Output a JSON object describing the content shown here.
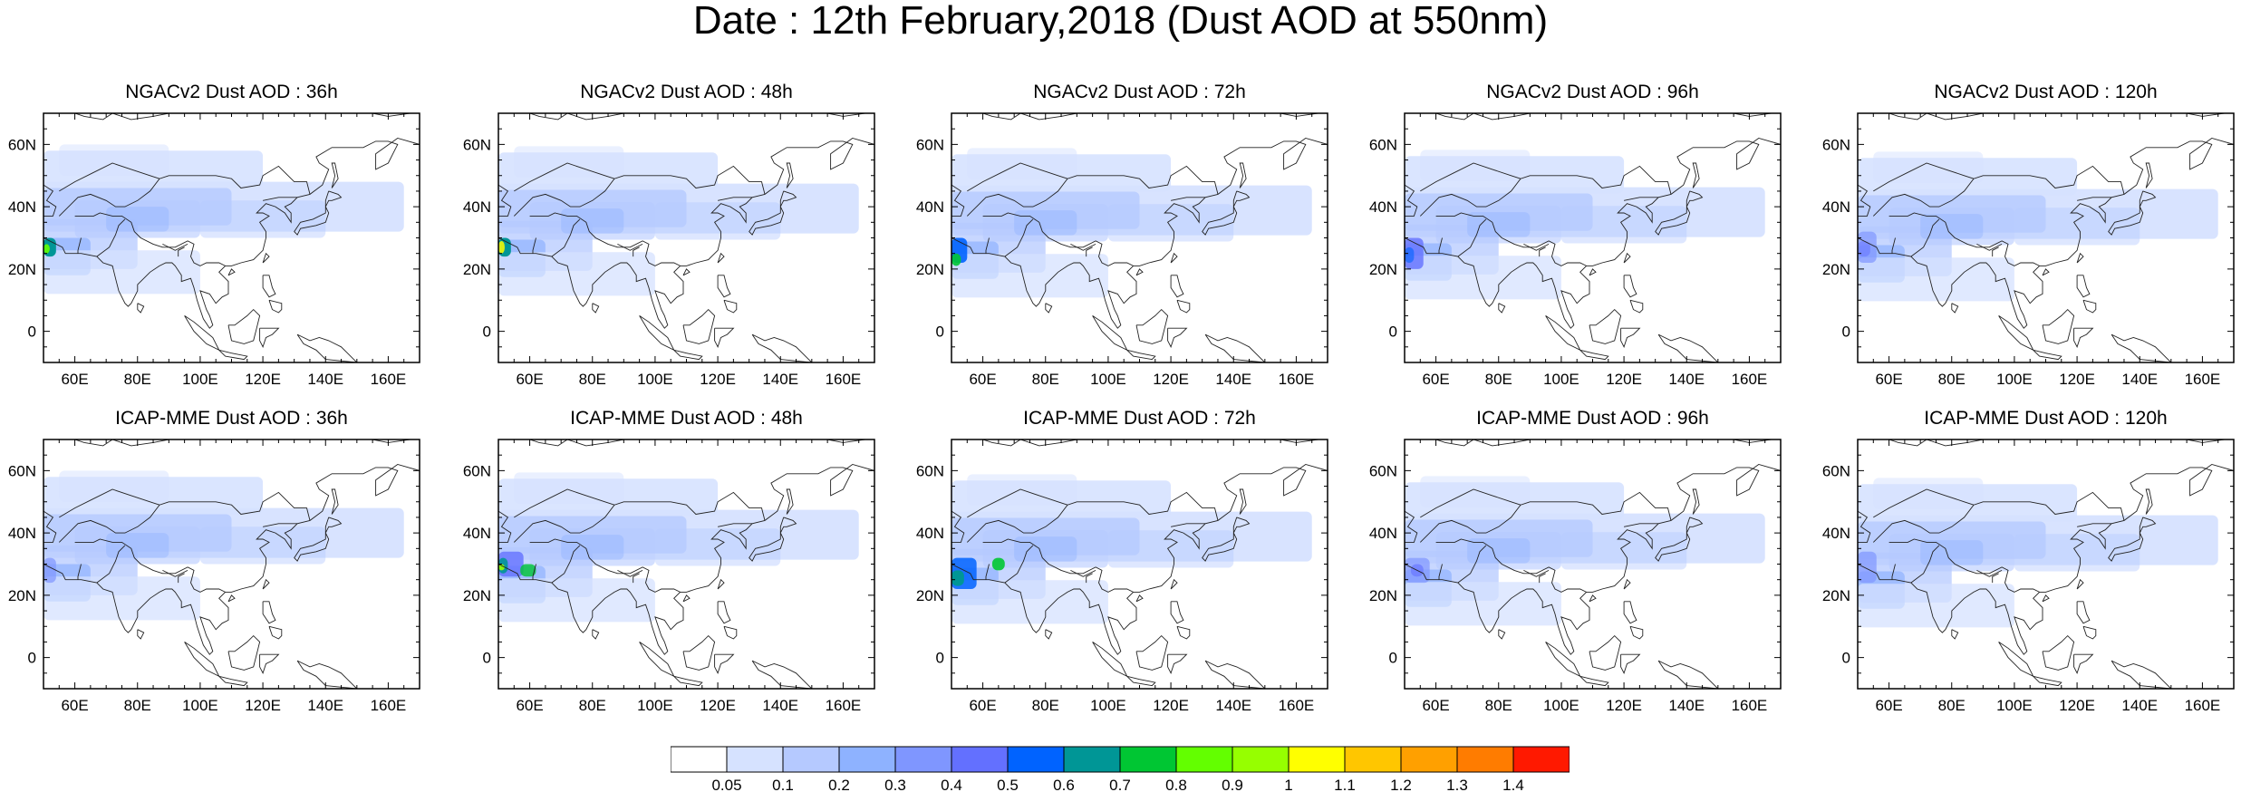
{
  "title": "Date : 12th February,2018 (Dust AOD at 550nm)",
  "map_extent": {
    "lon": [
      50,
      170
    ],
    "lat": [
      -10,
      70
    ]
  },
  "x_ticks": [
    {
      "value": 60,
      "label": "60E"
    },
    {
      "value": 80,
      "label": "80E"
    },
    {
      "value": 100,
      "label": "100E"
    },
    {
      "value": 120,
      "label": "120E"
    },
    {
      "value": 140,
      "label": "140E"
    },
    {
      "value": 160,
      "label": "160E"
    }
  ],
  "y_ticks": [
    {
      "value": 0,
      "label": "0"
    },
    {
      "value": 20,
      "label": "20N"
    },
    {
      "value": 40,
      "label": "40N"
    },
    {
      "value": 60,
      "label": "60N"
    }
  ],
  "panels": [
    {
      "title": "NGACv2 Dust AOD : 36h",
      "model": "NGACv2",
      "lead_hours": 36
    },
    {
      "title": "NGACv2 Dust AOD : 48h",
      "model": "NGACv2",
      "lead_hours": 48
    },
    {
      "title": "NGACv2 Dust AOD : 72h",
      "model": "NGACv2",
      "lead_hours": 72
    },
    {
      "title": "NGACv2 Dust AOD : 96h",
      "model": "NGACv2",
      "lead_hours": 96
    },
    {
      "title": "NGACv2 Dust AOD : 120h",
      "model": "NGACv2",
      "lead_hours": 120
    },
    {
      "title": "ICAP-MME Dust AOD : 36h",
      "model": "ICAP-MME",
      "lead_hours": 36
    },
    {
      "title": "ICAP-MME Dust AOD : 48h",
      "model": "ICAP-MME",
      "lead_hours": 48
    },
    {
      "title": "ICAP-MME Dust AOD : 72h",
      "model": "ICAP-MME",
      "lead_hours": 72
    },
    {
      "title": "ICAP-MME Dust AOD : 96h",
      "model": "ICAP-MME",
      "lead_hours": 96
    },
    {
      "title": "ICAP-MME Dust AOD : 120h",
      "model": "ICAP-MME",
      "lead_hours": 120
    }
  ],
  "colorbar": {
    "levels": [
      "0.05",
      "0.1",
      "0.2",
      "0.3",
      "0.4",
      "0.5",
      "0.6",
      "0.7",
      "0.8",
      "0.9",
      "1",
      "1.1",
      "1.2",
      "1.3",
      "1.4"
    ],
    "colors": [
      "#ffffff",
      "#d6e2ff",
      "#b5c9ff",
      "#8eb2ff",
      "#7f96ff",
      "#6370ff",
      "#0063ff",
      "#009696",
      "#00c633",
      "#63ff00",
      "#96ff00",
      "#ffff00",
      "#ffc600",
      "#ffa000",
      "#ff7c00",
      "#ff1900"
    ]
  }
}
